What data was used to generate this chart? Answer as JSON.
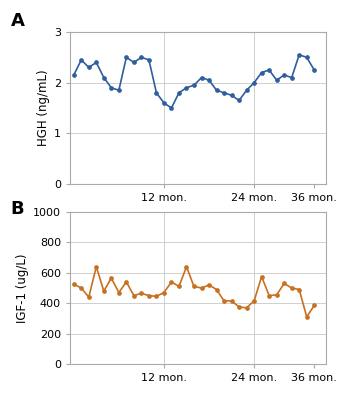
{
  "hgh_x": [
    0,
    1,
    2,
    3,
    4,
    5,
    6,
    7,
    8,
    9,
    10,
    11,
    12,
    13,
    14,
    15,
    16,
    17,
    18,
    19,
    20,
    21,
    22,
    23,
    24,
    25,
    26,
    27,
    28,
    29,
    30,
    31,
    32
  ],
  "hgh_y": [
    2.15,
    2.45,
    2.3,
    2.4,
    2.1,
    1.9,
    1.85,
    2.5,
    2.4,
    2.5,
    2.45,
    1.8,
    1.6,
    1.5,
    1.8,
    1.9,
    1.95,
    2.1,
    2.05,
    1.85,
    1.8,
    1.75,
    1.65,
    1.85,
    2.0,
    2.2,
    2.25,
    2.05,
    2.15,
    2.1,
    2.55,
    2.5,
    2.25
  ],
  "igf_x": [
    0,
    1,
    2,
    3,
    4,
    5,
    6,
    7,
    8,
    9,
    10,
    11,
    12,
    13,
    14,
    15,
    16,
    17,
    18,
    19,
    20,
    21,
    22,
    23,
    24,
    25,
    26,
    27,
    28,
    29,
    30,
    31,
    32
  ],
  "igf_y": [
    525,
    500,
    440,
    640,
    480,
    565,
    470,
    540,
    450,
    465,
    450,
    445,
    470,
    540,
    510,
    640,
    510,
    500,
    520,
    490,
    415,
    415,
    375,
    370,
    415,
    575,
    450,
    455,
    530,
    500,
    490,
    310,
    385
  ],
  "hgh_color": "#2E5E9E",
  "igf_color": "#C87020",
  "hgh_ylabel": "HGH (ng/mL)",
  "igf_ylabel": "IGF-1 (ug/L)",
  "hgh_ylim": [
    0,
    3
  ],
  "igf_ylim": [
    0,
    1000
  ],
  "hgh_yticks": [
    0,
    1,
    2,
    3
  ],
  "igf_yticks": [
    0,
    200,
    400,
    600,
    800,
    1000
  ],
  "xtick_positions": [
    12,
    24,
    32
  ],
  "xtick_labels": [
    "12 mon.",
    "24 mon.",
    "36 mon."
  ],
  "label_A": "A",
  "label_B": "B",
  "bg_color": "#ffffff",
  "grid_color": "#d0d0d0",
  "spine_color": "#aaaaaa",
  "xlim": [
    -0.5,
    33.5
  ],
  "label_fontsize": 13,
  "tick_fontsize": 8,
  "ylabel_fontsize": 8.5
}
